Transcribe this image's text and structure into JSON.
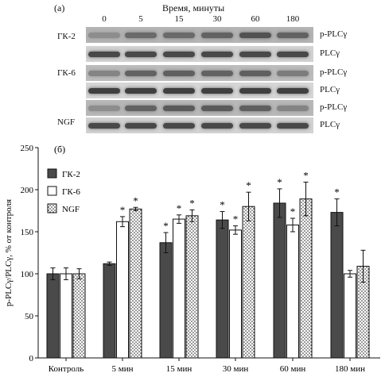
{
  "blot": {
    "panel_label": "(а)",
    "time_title": "Время, минуты",
    "time_points": [
      "0",
      "5",
      "15",
      "30",
      "60",
      "180"
    ],
    "rows": [
      {
        "group": "ГК-2",
        "strips": [
          {
            "label": "p-PLCγ",
            "intensity": [
              0.35,
              0.55,
              0.55,
              0.6,
              0.7,
              0.6
            ],
            "background": "#b4b4b4"
          },
          {
            "label": "PLCγ",
            "intensity": [
              0.75,
              0.75,
              0.75,
              0.75,
              0.75,
              0.75
            ],
            "background": "#d2d2d2"
          }
        ]
      },
      {
        "group": "ГК-6",
        "strips": [
          {
            "label": "p-PLCγ",
            "intensity": [
              0.4,
              0.6,
              0.62,
              0.6,
              0.62,
              0.45
            ],
            "background": "#bcbcbc"
          },
          {
            "label": "PLCγ",
            "intensity": [
              0.8,
              0.8,
              0.8,
              0.8,
              0.8,
              0.8
            ],
            "background": "#d6d6d6"
          }
        ]
      },
      {
        "group": "NGF",
        "strips": [
          {
            "label": "p-PLCγ",
            "intensity": [
              0.35,
              0.6,
              0.65,
              0.65,
              0.62,
              0.4
            ],
            "background": "#b8b8b8"
          },
          {
            "label": "PLCγ",
            "intensity": [
              0.75,
              0.75,
              0.75,
              0.75,
              0.75,
              0.75
            ],
            "background": "#d2d2d2"
          }
        ]
      }
    ]
  },
  "chart_data": {
    "type": "bar",
    "panel_label": "(б)",
    "ylabel": "p-PLCγ/PLCγ, % от контроля",
    "ylim": [
      0,
      250
    ],
    "yticks": [
      0,
      50,
      100,
      150,
      200,
      250
    ],
    "categories": [
      "Контроль",
      "5 мин",
      "15 мин",
      "30 мин",
      "60 мин",
      "180 мин"
    ],
    "legend_position": "top-left",
    "significance_mark": "*",
    "series": [
      {
        "name": "ГК-2",
        "fill": "solid",
        "color": "#4a4a4a",
        "values": [
          100,
          112,
          137,
          164,
          184,
          173
        ],
        "errors": [
          7,
          2,
          12,
          10,
          17,
          16
        ],
        "significant": [
          false,
          false,
          true,
          true,
          true,
          true
        ]
      },
      {
        "name": "ГК-6",
        "fill": "empty",
        "color": "#ffffff",
        "values": [
          100,
          162,
          165,
          152,
          158,
          100
        ],
        "errors": [
          7,
          6,
          5,
          5,
          8,
          4
        ],
        "significant": [
          false,
          true,
          true,
          true,
          true,
          false
        ]
      },
      {
        "name": "NGF",
        "fill": "dotted",
        "color": "#ffffff",
        "values": [
          100,
          177,
          169,
          180,
          189,
          109
        ],
        "errors": [
          6,
          2,
          7,
          17,
          20,
          19
        ],
        "significant": [
          false,
          true,
          true,
          true,
          true,
          false
        ]
      }
    ]
  }
}
